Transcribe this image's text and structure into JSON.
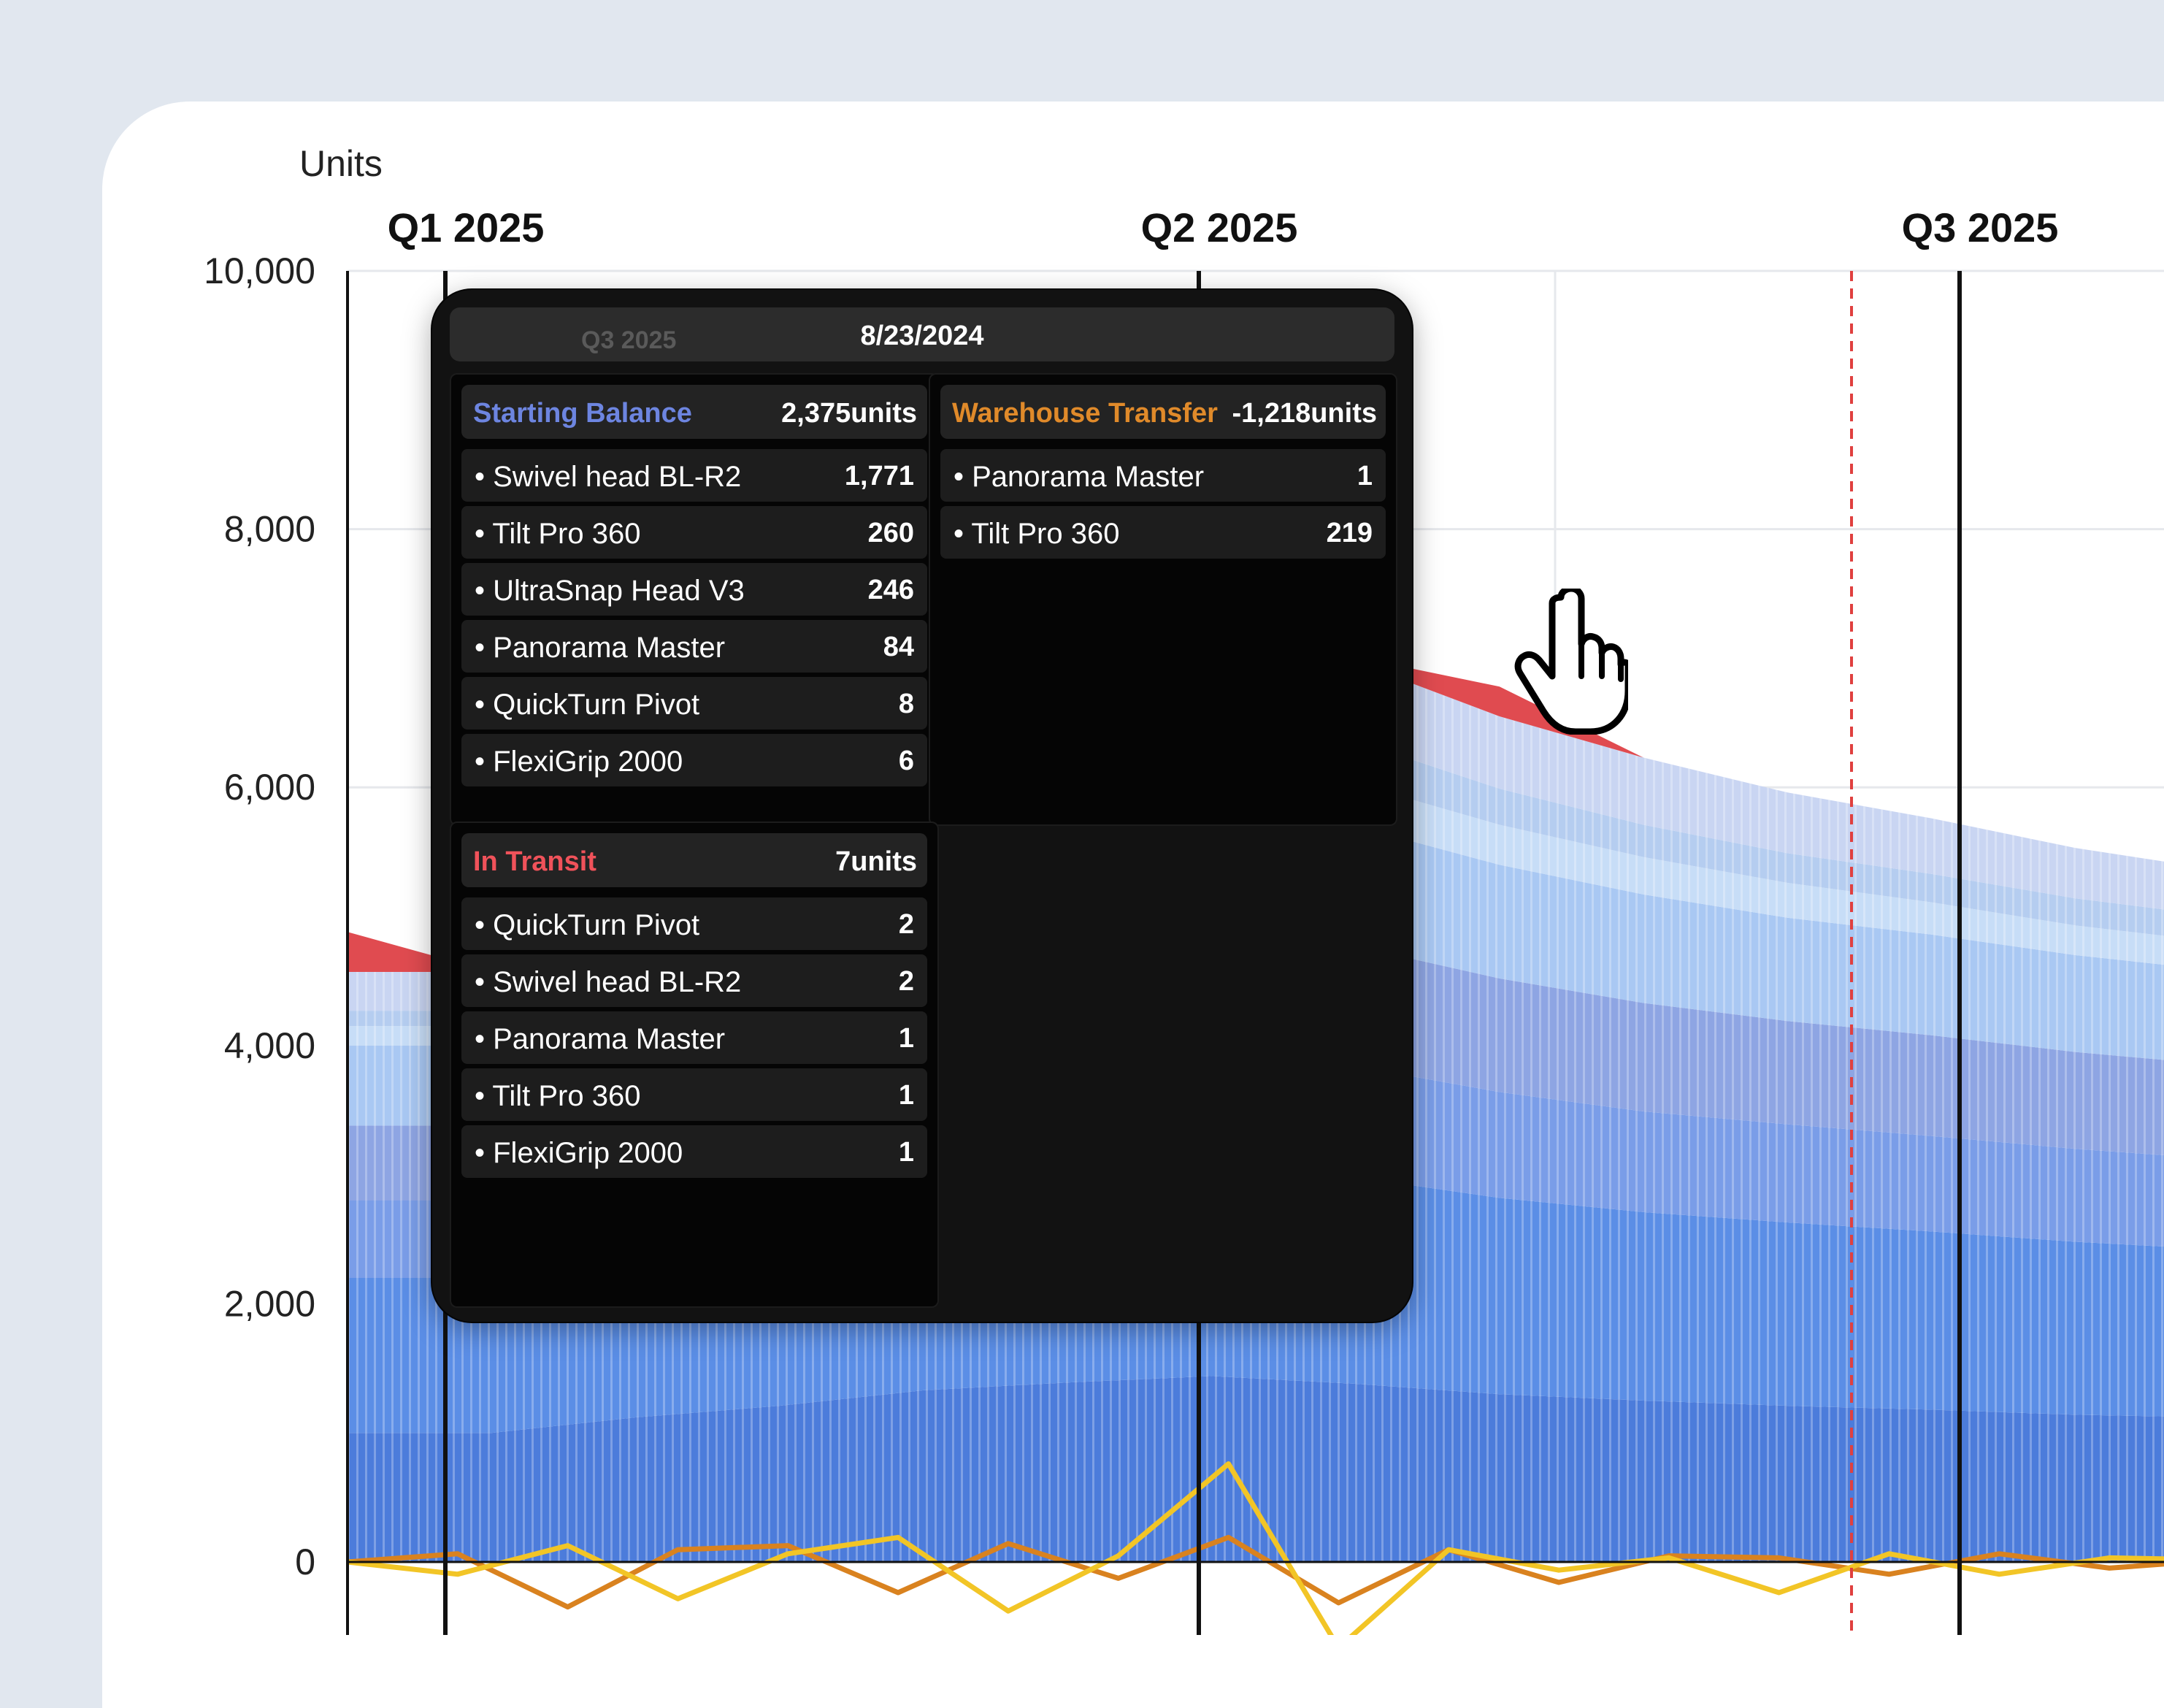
{
  "chart_data": {
    "type": "area",
    "ylabel": "Units",
    "ylim": [
      0,
      10000
    ],
    "y_ticks": [
      "10,000",
      "8,000",
      "6,000",
      "4,000",
      "2,000",
      "0"
    ],
    "quarter_labels": [
      "Q1 2025",
      "Q2 2025",
      "Q3 2025"
    ],
    "grid": true,
    "series": [
      {
        "values": [
          1000,
          1000,
          1120,
          1210,
          1330,
          1390,
          1440,
          1380,
          1300,
          1250,
          1210,
          1180,
          1140,
          1120
        ]
      },
      {
        "values": [
          1200,
          1200,
          1330,
          1450,
          1550,
          1620,
          1680,
          1600,
          1520,
          1460,
          1420,
          1380,
          1340,
          1300
        ]
      },
      {
        "values": [
          600,
          600,
          680,
          760,
          830,
          880,
          920,
          860,
          820,
          780,
          760,
          740,
          720,
          700
        ]
      },
      {
        "values": [
          580,
          580,
          660,
          760,
          850,
          920,
          980,
          930,
          880,
          840,
          800,
          780,
          750,
          730
        ]
      },
      {
        "values": [
          620,
          620,
          700,
          780,
          860,
          920,
          980,
          930,
          880,
          840,
          800,
          780,
          750,
          730
        ]
      },
      {
        "values": [
          150,
          150,
          200,
          250,
          290,
          320,
          350,
          330,
          310,
          290,
          270,
          250,
          230,
          220
        ]
      },
      {
        "values": [
          120,
          120,
          200,
          260,
          330,
          360,
          380,
          330,
          280,
          250,
          230,
          220,
          210,
          200
        ]
      },
      {
        "values": [
          300,
          300,
          360,
          440,
          520,
          600,
          650,
          610,
          560,
          520,
          470,
          430,
          390,
          360
        ]
      }
    ],
    "in_transit": {
      "values": [
        310,
        0,
        0,
        0,
        0,
        500,
        120,
        40,
        230,
        0,
        0,
        0,
        0,
        0
      ]
    },
    "net_change_lines": [
      {
        "values": [
          0,
          40,
          -220,
          60,
          80,
          -150,
          90,
          -80,
          120,
          -200,
          60,
          -100,
          30,
          20,
          -60,
          40,
          -30,
          10
        ]
      },
      {
        "values": [
          0,
          -60,
          80,
          -180,
          40,
          120,
          -240,
          30,
          480,
          -420,
          60,
          -40,
          20,
          -150,
          40,
          -60,
          20,
          10
        ]
      }
    ],
    "tooltip": {
      "date": "8/23/2024",
      "ghost_label": "Q3 2025",
      "groups": [
        {
          "title": "Starting Balance",
          "total": "2,375units",
          "color": "#6d85e0",
          "items": [
            {
              "name": "Swivel head BL-R2",
              "value": "1,771"
            },
            {
              "name": "Tilt Pro 360",
              "value": "260"
            },
            {
              "name": "UltraSnap Head V3",
              "value": "246"
            },
            {
              "name": "Panorama Master",
              "value": "84"
            },
            {
              "name": "QuickTurn Pivot",
              "value": "8"
            },
            {
              "name": "FlexiGrip 2000",
              "value": "6"
            }
          ]
        },
        {
          "title": "Warehouse Transfer",
          "total": "-1,218units",
          "color": "#e08a2a",
          "items": [
            {
              "name": "Panorama Master",
              "value": "1"
            },
            {
              "name": "Tilt Pro 360",
              "value": "219"
            }
          ]
        },
        {
          "title": "In Transit",
          "total": "7units",
          "color": "#f0525a",
          "items": [
            {
              "name": "QuickTurn Pivot",
              "value": "2"
            },
            {
              "name": "Swivel head BL-R2",
              "value": "2"
            },
            {
              "name": "Panorama Master",
              "value": "1"
            },
            {
              "name": "Tilt Pro 360",
              "value": "1"
            },
            {
              "name": "FlexiGrip 2000",
              "value": "1"
            }
          ]
        }
      ]
    }
  },
  "colors": {
    "band_colors": [
      "#4c7cdb",
      "#5b8ee6",
      "#7a9de8",
      "#8ea5e3",
      "#a9c8f3",
      "#c7ddf7",
      "#b5cdf0",
      "#c9d5f2"
    ],
    "in_transit": "#e04b50",
    "forecast_line": "#e0403f",
    "net_line_1": "#d9821f",
    "net_line_2": "#f2c526",
    "quarter_line": "#111111"
  },
  "icons": {
    "cursor": "hand-pointer-icon"
  }
}
